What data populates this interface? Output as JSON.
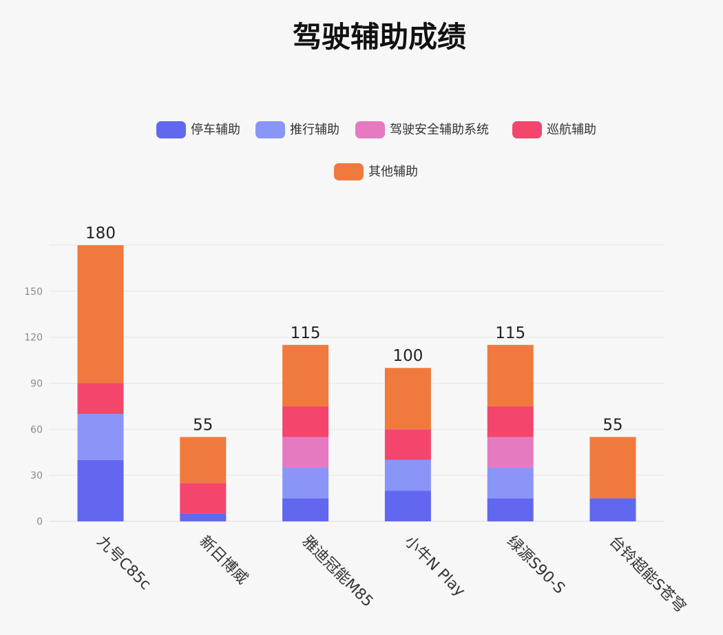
{
  "chart_data": {
    "type": "bar",
    "stacked": true,
    "title": "驾驶辅助成绩",
    "categories": [
      "九号C85c",
      "新日博威",
      "雅迪冠能M85",
      "小牛N Play",
      "绿源S90-S",
      "台铃超能S苍穹"
    ],
    "series": [
      {
        "name": "停车辅助",
        "color": "#6167ee",
        "values": [
          40,
          5,
          15,
          20,
          15,
          15
        ]
      },
      {
        "name": "推行辅助",
        "color": "#8996f7",
        "values": [
          30,
          0,
          20,
          20,
          20,
          0
        ]
      },
      {
        "name": "驾驶安全辅助系统",
        "color": "#e67ac0",
        "values": [
          0,
          0,
          20,
          0,
          20,
          0
        ]
      },
      {
        "name": "巡航辅助",
        "color": "#f4466d",
        "values": [
          20,
          20,
          20,
          20,
          20,
          0
        ]
      },
      {
        "name": "其他辅助",
        "color": "#f07a3e",
        "values": [
          90,
          30,
          40,
          40,
          40,
          40
        ]
      }
    ],
    "totals": [
      "180",
      "55",
      "115",
      "100",
      "115",
      "55"
    ],
    "y_ticks": [
      "0",
      "30",
      "60",
      "90",
      "120",
      "150"
    ],
    "ylim": [
      0,
      180
    ],
    "grid": true,
    "legend_position": "top"
  }
}
